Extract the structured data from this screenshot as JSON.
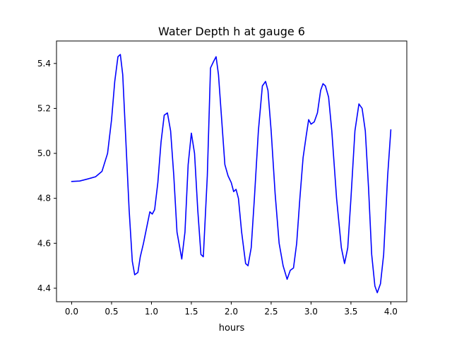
{
  "chart_data": {
    "type": "line",
    "title": "Water Depth h at gauge 6",
    "xlabel": "hours",
    "ylabel": "",
    "xlim": [
      -0.19,
      4.2
    ],
    "ylim": [
      4.34,
      5.5
    ],
    "x_ticks": [
      0.0,
      0.5,
      1.0,
      1.5,
      2.0,
      2.5,
      3.0,
      3.5,
      4.0
    ],
    "x_tick_labels": [
      "0.0",
      "0.5",
      "1.0",
      "1.5",
      "2.0",
      "2.5",
      "3.0",
      "3.5",
      "4.0"
    ],
    "y_ticks": [
      4.4,
      4.6,
      4.8,
      5.0,
      5.2,
      5.4
    ],
    "y_tick_labels": [
      "4.4",
      "4.6",
      "4.8",
      "5.0",
      "5.2",
      "5.4"
    ],
    "grid": false,
    "legend": "none",
    "series": [
      {
        "color": "#0000ff",
        "x": [
          0.0,
          0.1,
          0.2,
          0.3,
          0.38,
          0.45,
          0.5,
          0.54,
          0.58,
          0.61,
          0.64,
          0.68,
          0.72,
          0.76,
          0.79,
          0.83,
          0.86,
          0.9,
          0.94,
          0.98,
          1.01,
          1.04,
          1.08,
          1.12,
          1.16,
          1.2,
          1.24,
          1.28,
          1.32,
          1.38,
          1.42,
          1.46,
          1.5,
          1.54,
          1.58,
          1.62,
          1.65,
          1.7,
          1.74,
          1.78,
          1.81,
          1.84,
          1.88,
          1.92,
          1.96,
          2.0,
          2.03,
          2.06,
          2.09,
          2.13,
          2.18,
          2.21,
          2.25,
          2.29,
          2.34,
          2.39,
          2.43,
          2.46,
          2.5,
          2.55,
          2.6,
          2.65,
          2.7,
          2.74,
          2.78,
          2.82,
          2.86,
          2.9,
          2.94,
          2.97,
          3.0,
          3.04,
          3.08,
          3.12,
          3.15,
          3.18,
          3.22,
          3.26,
          3.32,
          3.38,
          3.42,
          3.46,
          3.5,
          3.55,
          3.6,
          3.64,
          3.68,
          3.72,
          3.76,
          3.8,
          3.83,
          3.87,
          3.91,
          3.96,
          4.0
        ],
        "y": [
          4.875,
          4.877,
          4.886,
          4.896,
          4.92,
          5.0,
          5.15,
          5.32,
          5.43,
          5.44,
          5.35,
          5.05,
          4.75,
          4.52,
          4.46,
          4.47,
          4.54,
          4.6,
          4.67,
          4.74,
          4.73,
          4.75,
          4.87,
          5.05,
          5.17,
          5.18,
          5.1,
          4.9,
          4.65,
          4.53,
          4.65,
          4.95,
          5.09,
          5.0,
          4.75,
          4.55,
          4.54,
          4.9,
          5.38,
          5.41,
          5.43,
          5.35,
          5.15,
          4.95,
          4.9,
          4.87,
          4.83,
          4.84,
          4.8,
          4.65,
          4.51,
          4.5,
          4.58,
          4.8,
          5.1,
          5.3,
          5.32,
          5.28,
          5.1,
          4.82,
          4.6,
          4.5,
          4.44,
          4.48,
          4.49,
          4.6,
          4.8,
          4.98,
          5.08,
          5.15,
          5.13,
          5.14,
          5.18,
          5.28,
          5.31,
          5.3,
          5.25,
          5.1,
          4.8,
          4.58,
          4.51,
          4.58,
          4.8,
          5.1,
          5.22,
          5.2,
          5.1,
          4.85,
          4.55,
          4.41,
          4.38,
          4.42,
          4.55,
          4.9,
          5.105
        ]
      }
    ]
  }
}
